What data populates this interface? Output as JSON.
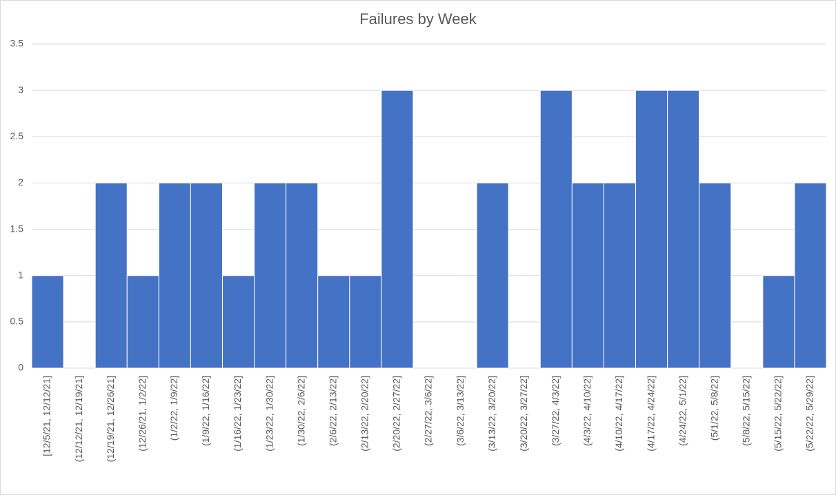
{
  "chart_data": {
    "type": "bar",
    "title": "Failures by Week",
    "categories": [
      "[12/5/21, 12/12/21]",
      "(12/12/21, 12/19/21]",
      "(12/19/21, 12/26/21]",
      "(12/26/21, 1/2/22]",
      "(1/2/22, 1/9/22]",
      "(1/9/22, 1/16/22]",
      "(1/16/22, 1/23/22]",
      "(1/23/22, 1/30/22]",
      "(1/30/22, 2/6/22]",
      "(2/6/22, 2/13/22]",
      "(2/13/22, 2/20/22]",
      "(2/20/22, 2/27/22]",
      "(2/27/22, 3/6/22]",
      "(3/6/22, 3/13/22]",
      "(3/13/22, 3/20/22]",
      "(3/20/22, 3/27/22]",
      "(3/27/22, 4/3/22]",
      "(4/3/22, 4/10/22]",
      "(4/10/22, 4/17/22]",
      "(4/17/22, 4/24/22]",
      "(4/24/22, 5/1/22]",
      "(5/1/22, 5/8/22]",
      "(5/8/22, 5/15/22]",
      "(5/15/22, 5/22/22]",
      "(5/22/22, 5/29/22]"
    ],
    "values": [
      1,
      0,
      2,
      1,
      2,
      2,
      1,
      2,
      2,
      1,
      1,
      3,
      0,
      0,
      2,
      0,
      3,
      2,
      2,
      3,
      3,
      2,
      0,
      1,
      2
    ],
    "color": "#4472c4",
    "ylim": [
      0,
      3.5
    ],
    "yticks": [
      0,
      0.5,
      1,
      1.5,
      2,
      2.5,
      3,
      3.5
    ],
    "grid": true
  }
}
